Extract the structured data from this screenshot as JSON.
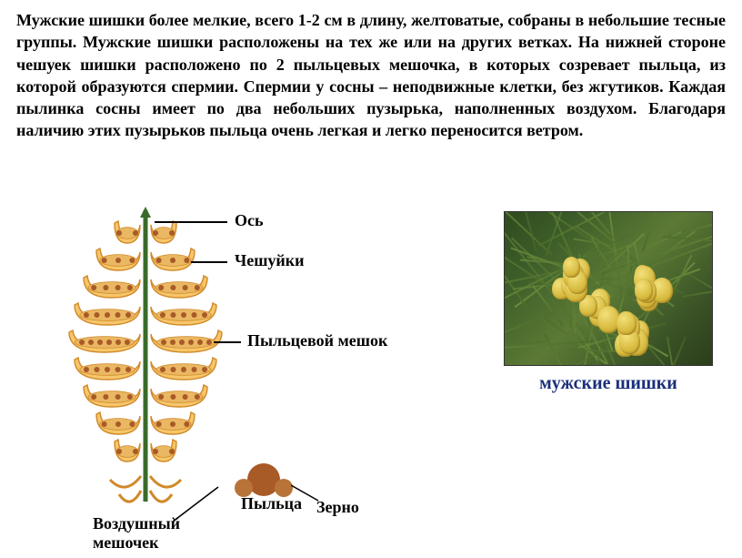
{
  "paragraph": "Мужские шишки более мелкие, всего 1-2 см в длину, желтоватые, собраны в небольшие тесные группы. Мужские шишки расположены на тех же или на других ветках. На нижней стороне чешуек шишки расположено по 2 пыльцевых мешочка, в которых созревает пыльца, из которой образуются спермии. Спермии у сосны – неподвижные клетки, без жгутиков. Каждая пылинка сосны имеет по два небольших пузырька, наполненных воздухом. Благодаря наличию этих пузырьков пыльца очень легкая и легко переносится ветром.",
  "labels": {
    "axis": "Ось",
    "scales": "Чешуйки",
    "pollen_sac": "Пыльцевой мешок",
    "pollen": "Пыльца",
    "grain": "Зерно",
    "air_sac": "Воздушный\nмешочек"
  },
  "photo_caption": "мужские шишки",
  "colors": {
    "scale_fill": "#f7c66a",
    "scale_stroke": "#d08a2a",
    "sac_fill": "#eab763",
    "pollen_dot": "#a85a27",
    "axis_stroke": "#3a6b2a",
    "pollen_grain": "#a85a27",
    "air_sac_fill": "#b87338"
  },
  "diagram": {
    "rows": 9,
    "row_spacing": 30,
    "widths": [
      28,
      48,
      62,
      72,
      78,
      72,
      62,
      48,
      28
    ],
    "font_size": 18,
    "pollen": {
      "grain_r": 18,
      "air_sac_r": 10
    }
  }
}
